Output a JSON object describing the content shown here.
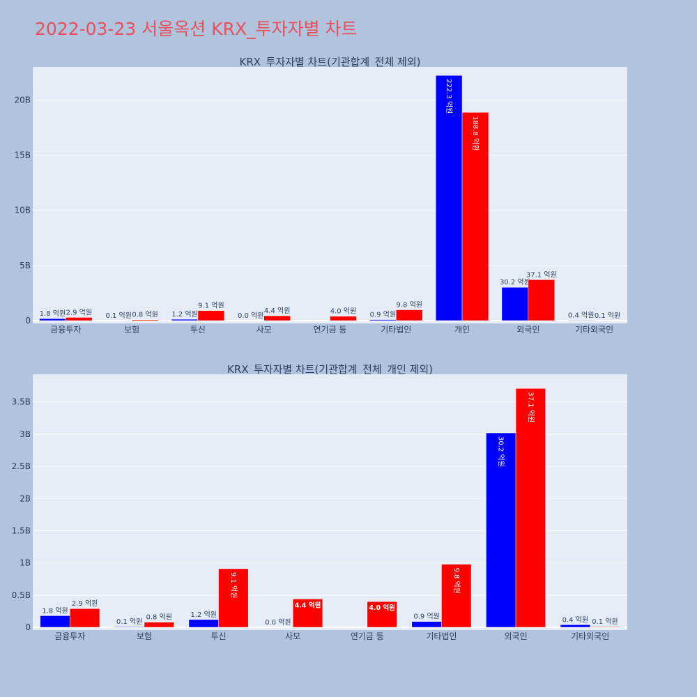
{
  "title": "2022-03-23 서울옥션 KRX_투자자별 차트",
  "chart_data": [
    {
      "type": "bar",
      "title": "KRX_투자자별 차트(기관합계_전체 제외)",
      "categories": [
        "금융투자",
        "보험",
        "투신",
        "사모",
        "연기금 등",
        "기타법인",
        "개인",
        "외국인",
        "기타외국인"
      ],
      "y_ticks": [
        "0",
        "5B",
        "10B",
        "15B",
        "20B"
      ],
      "ylim": [
        0,
        23.0
      ],
      "series": [
        {
          "color": "#0000ff",
          "values": [
            0.18,
            0.01,
            0.12,
            0.0,
            null,
            0.09,
            22.23,
            3.02,
            0.04
          ],
          "labels": [
            "1.8 억원",
            "0.1 억원",
            "1.2 억원",
            "0.0 억원",
            "",
            "0.9 억원",
            "222.3 억원",
            "30.2 억원",
            "0.4 억원"
          ]
        },
        {
          "color": "#ff0000",
          "values": [
            0.29,
            0.08,
            0.91,
            0.44,
            0.4,
            0.98,
            18.88,
            3.71,
            0.01
          ],
          "labels": [
            "2.9 억원",
            "0.8 억원",
            "9.1 억원",
            "4.4 억원",
            "4.0 억원",
            "9.8 억원",
            "188.8 억원",
            "37.1 억원",
            "0.1 억원"
          ]
        }
      ]
    },
    {
      "type": "bar",
      "title": "KRX_투자자별 차트(기관합계_전체_개인 제외)",
      "categories": [
        "금융투자",
        "보험",
        "투신",
        "사모",
        "연기금 등",
        "기타법인",
        "외국인",
        "기타외국인"
      ],
      "y_ticks": [
        "0",
        "0.5B",
        "1B",
        "1.5B",
        "2B",
        "2.5B",
        "3B",
        "3.5B"
      ],
      "ylim": [
        0,
        3.93
      ],
      "series": [
        {
          "color": "#0000ff",
          "values": [
            0.18,
            0.01,
            0.12,
            0.0,
            null,
            0.09,
            3.02,
            0.04
          ],
          "labels": [
            "1.8 억원",
            "0.1 억원",
            "1.2 억원",
            "0.0 억원",
            "",
            "0.9 억원",
            "30.2 억원",
            "0.4 억원"
          ]
        },
        {
          "color": "#ff0000",
          "values": [
            0.29,
            0.08,
            0.91,
            0.44,
            0.4,
            0.98,
            3.71,
            0.01
          ],
          "labels": [
            "2.9 억원",
            "0.8 억원",
            "9.1 억원",
            "4.4 억원",
            "4.0 억원",
            "9.8 억원",
            "37.1 억원",
            "0.1 억원"
          ]
        }
      ]
    }
  ]
}
